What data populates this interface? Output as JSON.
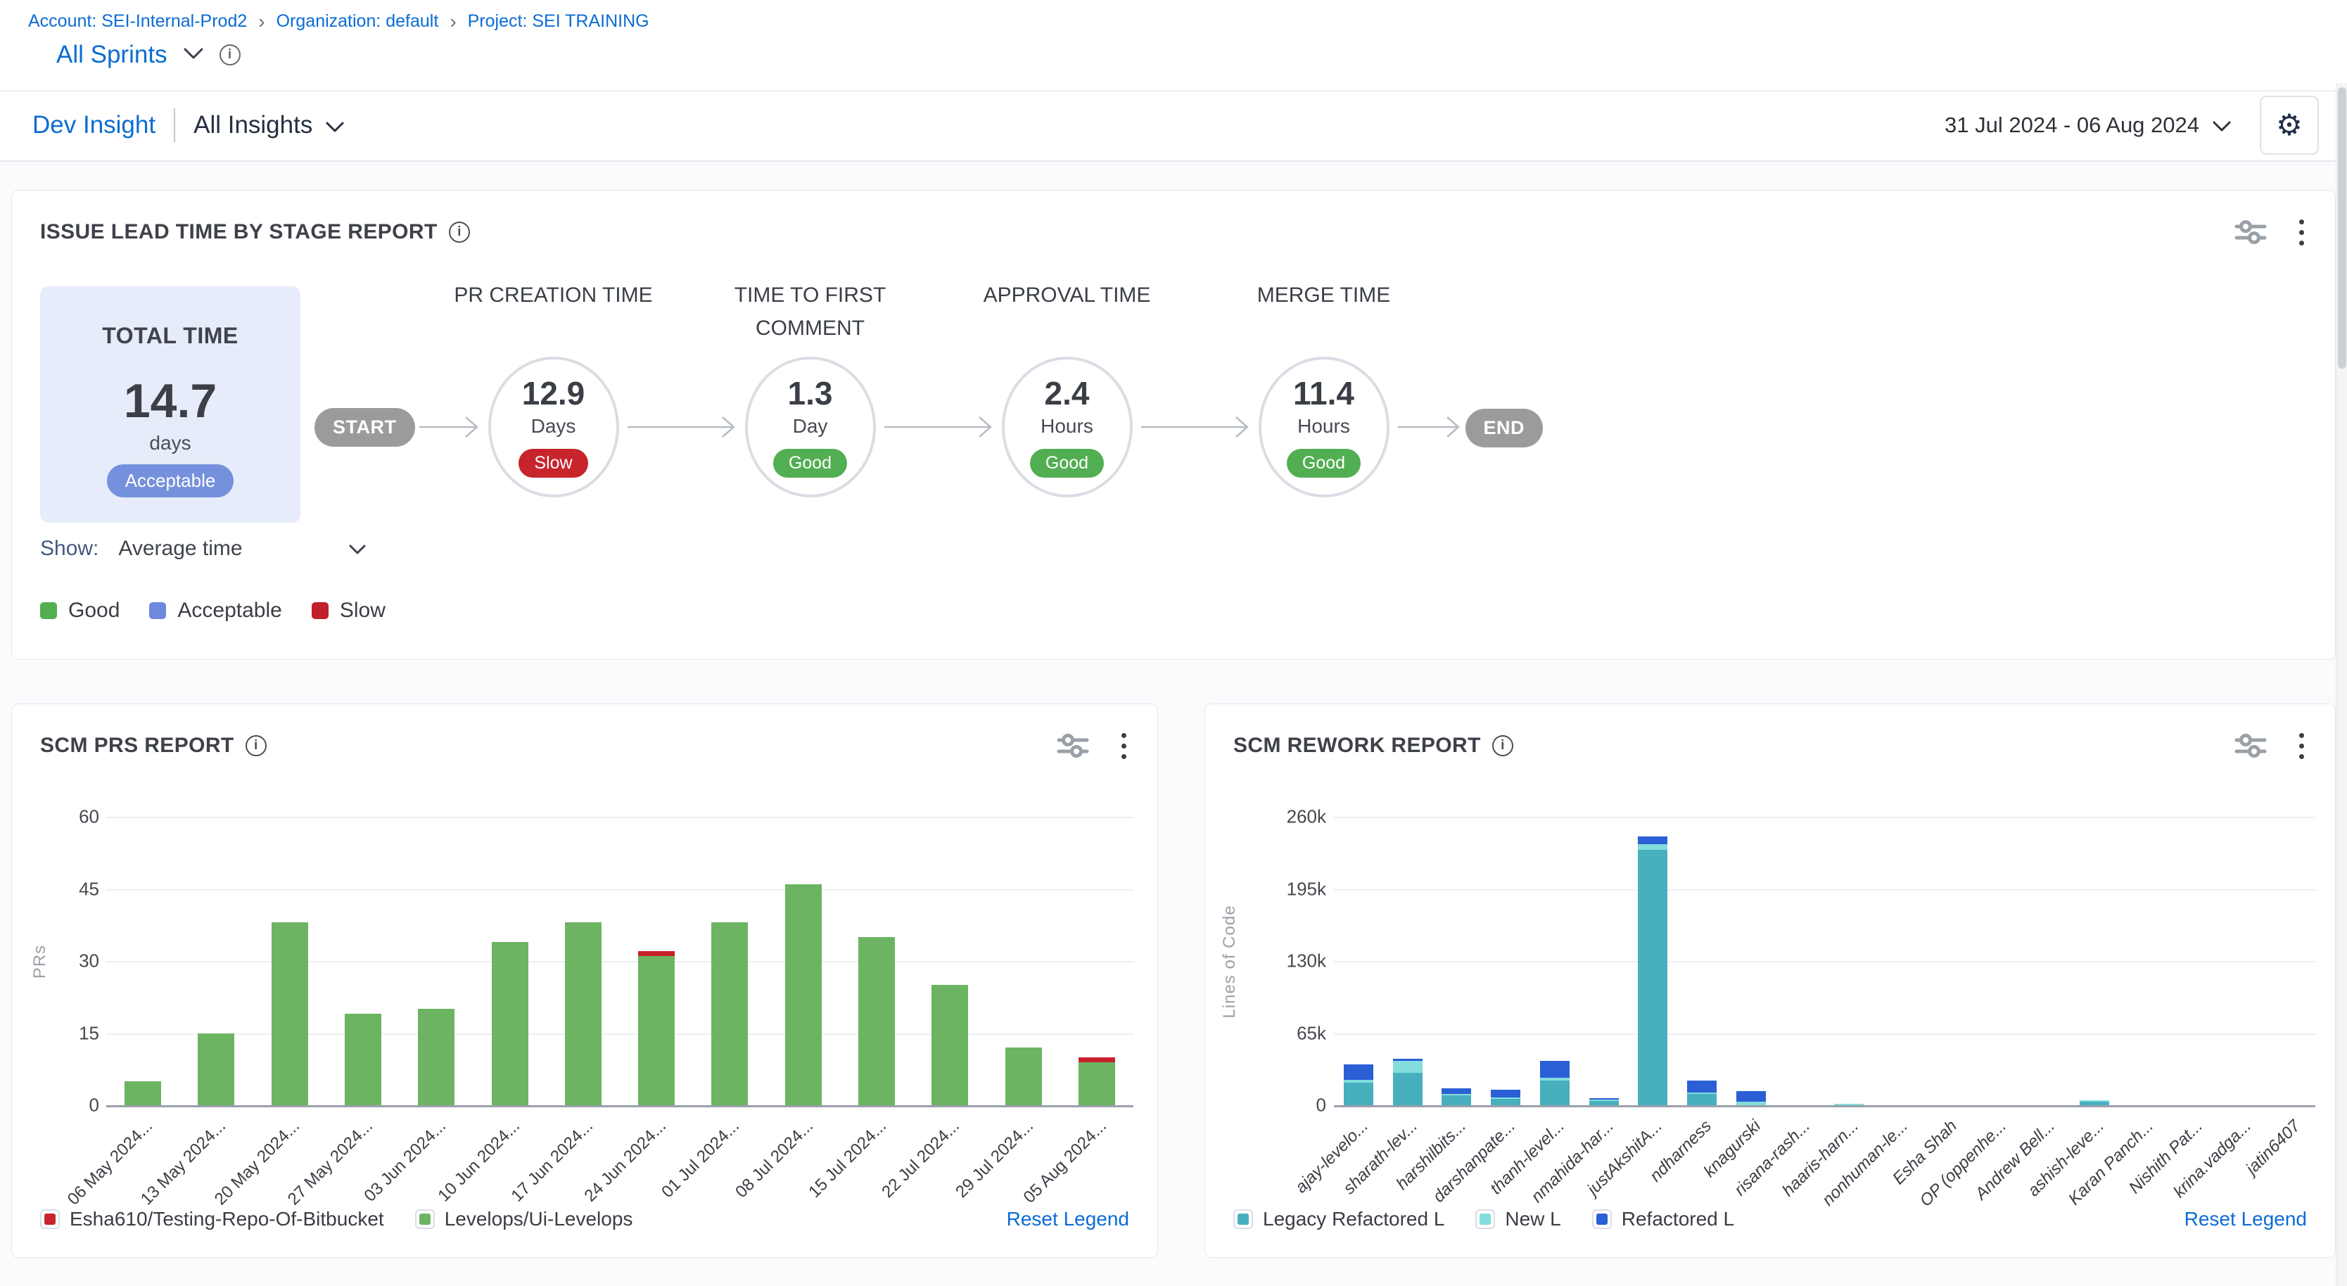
{
  "breadcrumb": {
    "items": [
      "Account: SEI-Internal-Prod2",
      "Organization: default",
      "Project: SEI TRAINING"
    ]
  },
  "sprint_bar": {
    "selector": "All Sprints"
  },
  "insight_bar": {
    "tab": "Dev Insight",
    "selector": "All Insights",
    "date_range": "31 Jul 2024  -  06 Aug 2024",
    "settings_icon": "gear-icon"
  },
  "lead_time_panel": {
    "title": "ISSUE LEAD TIME BY STAGE REPORT",
    "total_card": {
      "label": "TOTAL TIME",
      "value": "14.7",
      "unit": "days",
      "rating": "Acceptable",
      "rating_color": "#7590dc",
      "bg_color": "#e7ecfa"
    },
    "flow": {
      "start": "START",
      "end": "END",
      "stages": [
        {
          "label": "PR CREATION TIME",
          "value": "12.9",
          "unit": "Days",
          "rating": "Slow",
          "rating_color": "#c8242c"
        },
        {
          "label": "TIME TO FIRST COMMENT",
          "value": "1.3",
          "unit": "Day",
          "rating": "Good",
          "rating_color": "#52ae52"
        },
        {
          "label": "APPROVAL TIME",
          "value": "2.4",
          "unit": "Hours",
          "rating": "Good",
          "rating_color": "#52ae52"
        },
        {
          "label": "MERGE TIME",
          "value": "11.4",
          "unit": "Hours",
          "rating": "Good",
          "rating_color": "#52ae52"
        }
      ]
    },
    "show": {
      "label": "Show:",
      "value": "Average time"
    },
    "legend": [
      {
        "label": "Good",
        "color": "#53ae4f"
      },
      {
        "label": "Acceptable",
        "color": "#6d89db"
      },
      {
        "label": "Slow",
        "color": "#c21f2c"
      }
    ]
  },
  "scm_prs_panel": {
    "title": "SCM PRS REPORT",
    "reset_label": "Reset Legend",
    "legend": [
      {
        "label": "Esha610/Testing-Repo-Of-Bitbucket",
        "color": "#c8232c"
      },
      {
        "label": "Levelops/Ui-Levelops",
        "color": "#6cb462"
      }
    ]
  },
  "scm_rework_panel": {
    "title": "SCM REWORK REPORT",
    "reset_label": "Reset Legend",
    "legend": [
      {
        "label": "Legacy Refactored L",
        "color": "#47afbe"
      },
      {
        "label": "New L",
        "color": "#82dddc"
      },
      {
        "label": "Refactored L",
        "color": "#2b5fd6"
      }
    ]
  },
  "chart_data": [
    {
      "type": "bar",
      "stacked": true,
      "title": "SCM PRS REPORT",
      "xlabel": "",
      "ylabel": "PRs",
      "ylim": [
        0,
        60
      ],
      "yticks": [
        "0",
        "15",
        "30",
        "45",
        "60"
      ],
      "grid": true,
      "legend_position": "bottom",
      "categories": [
        "06 May 2024...",
        "13 May 2024...",
        "20 May 2024...",
        "27 May 2024...",
        "03 Jun 2024...",
        "10 Jun 2024...",
        "17 Jun 2024...",
        "24 Jun 2024...",
        "01 Jul 2024...",
        "08 Jul 2024...",
        "15 Jul 2024...",
        "22 Jul 2024...",
        "29 Jul 2024...",
        "05 Aug 2024..."
      ],
      "series": [
        {
          "name": "Levelops/Ui-Levelops",
          "color": "#6cb462",
          "values": [
            5,
            15,
            38,
            19,
            20,
            34,
            38,
            31,
            38,
            46,
            35,
            25,
            12,
            9
          ]
        },
        {
          "name": "Esha610/Testing-Repo-Of-Bitbucket",
          "color": "#c8232c",
          "values": [
            0,
            0,
            0,
            0,
            0,
            0,
            0,
            1,
            0,
            0,
            0,
            0,
            0,
            1
          ]
        }
      ]
    },
    {
      "type": "bar",
      "stacked": true,
      "title": "SCM REWORK REPORT",
      "xlabel": "",
      "ylabel": "Lines of Code",
      "ylim": [
        0,
        260000
      ],
      "yticks": [
        "0",
        "65k",
        "130k",
        "195k",
        "260k"
      ],
      "grid": true,
      "legend_position": "bottom",
      "categories": [
        "ajay-levelo...",
        "sharath-lev...",
        "harshilbits...",
        "darshanpate...",
        "thanh-level...",
        "nmahida-har...",
        "justAkshitA...",
        "ndharness",
        "knagurski",
        "risana-rash...",
        "haaris-harn...",
        "nonhuman-le...",
        "Esha Shah",
        "OP (oppenhe...",
        "Andrew Bell...",
        "ashish-leve...",
        "Karan Panch...",
        "Nishith Pat...",
        "krina.vadga...",
        "jatin6407"
      ],
      "series": [
        {
          "name": "Legacy Refactored L",
          "color": "#47afbe",
          "values": [
            20000,
            29000,
            9000,
            6000,
            22000,
            4000,
            230000,
            10000,
            0,
            0,
            0,
            0,
            0,
            0,
            0,
            3000,
            0,
            0,
            0,
            0
          ]
        },
        {
          "name": "New L",
          "color": "#82dddc",
          "values": [
            3000,
            11000,
            1000,
            1000,
            3000,
            1000,
            5000,
            1000,
            3000,
            0,
            1500,
            0,
            0,
            0,
            0,
            500,
            0,
            0,
            0,
            0
          ]
        },
        {
          "name": "Refactored L",
          "color": "#2b5fd6",
          "values": [
            14000,
            2000,
            5000,
            7000,
            15000,
            1000,
            7000,
            11000,
            10000,
            0,
            0,
            0,
            0,
            0,
            0,
            0,
            0,
            0,
            0,
            0
          ]
        }
      ]
    }
  ]
}
